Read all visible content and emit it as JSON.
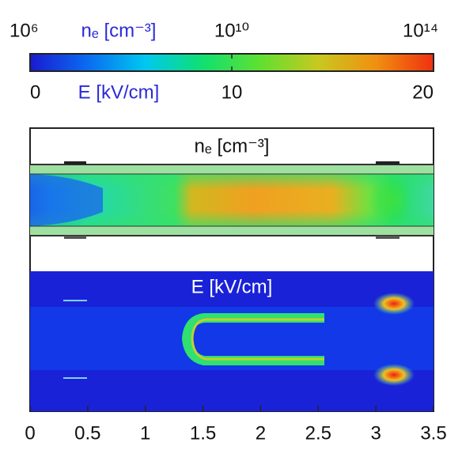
{
  "chart_data": {
    "type": "field-map",
    "colorbar": {
      "colors": [
        "#1a1ad0",
        "#0a6cf0",
        "#00c8f0",
        "#10e070",
        "#60e030",
        "#c8c820",
        "#f09010",
        "#f03010"
      ],
      "ne": {
        "label": "nₑ [cm⁻³]",
        "log": true,
        "lim": [
          1000000,
          100000000000000
        ],
        "ticks": [
          {
            "value": 1000000,
            "label": "10⁶"
          },
          {
            "value": 10000000000,
            "label": "10¹⁰"
          },
          {
            "value": 100000000000000,
            "label": "10¹⁴"
          }
        ]
      },
      "E": {
        "label": "E [kV/cm]",
        "log": false,
        "lim": [
          0,
          20
        ],
        "ticks": [
          0,
          10,
          20
        ]
      }
    },
    "panels": [
      {
        "title": "nₑ [cm⁻³]"
      },
      {
        "title": "E [kV/cm]"
      }
    ],
    "xlim": [
      0,
      3.5
    ],
    "xticks": [
      0,
      0.5,
      1,
      1.5,
      2,
      2.5,
      3,
      3.5
    ]
  }
}
